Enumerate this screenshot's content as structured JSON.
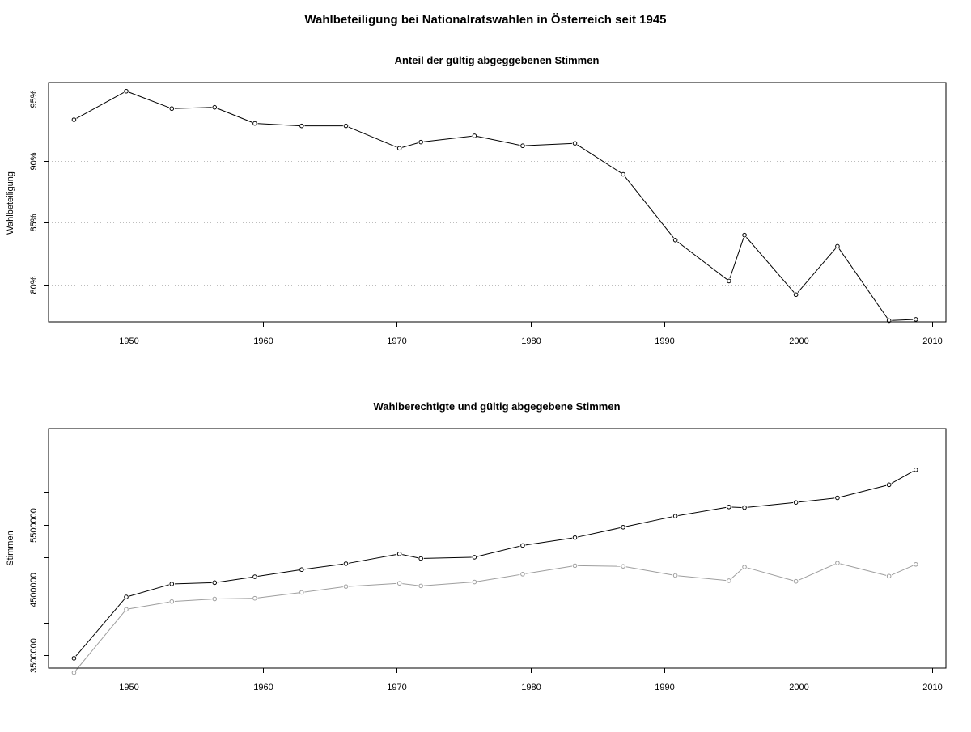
{
  "figure": {
    "title": "Wahlbeteiligung bei Nationalratswahlen in Österreich seit 1945"
  },
  "chart_data": [
    {
      "type": "line",
      "title": "Anteil der gültig abgeggebenen Stimmen",
      "xlabel": "",
      "ylabel": "Wahlbeteiligung",
      "xlim": [
        1944,
        2011
      ],
      "ylim": [
        77,
        96.3
      ],
      "xticks": [
        1950,
        1960,
        1970,
        1980,
        1990,
        2000,
        2010
      ],
      "xtick_labels": [
        "1950",
        "1960",
        "1970",
        "1980",
        "1990",
        "2000",
        "2010"
      ],
      "yticks": [
        80,
        85,
        90,
        95
      ],
      "ytick_labels": [
        "80%",
        "85%",
        "90%",
        "95%"
      ],
      "grid": "horizontal dotted",
      "series": [
        {
          "color": "#000000",
          "x": [
            1945.9,
            1949.8,
            1953.2,
            1956.4,
            1959.4,
            1962.9,
            1966.2,
            1970.2,
            1971.8,
            1975.8,
            1979.4,
            1983.3,
            1986.9,
            1990.8,
            1994.8,
            1995.96,
            1999.8,
            2002.9,
            2006.75,
            2008.75
          ],
          "y": [
            93.3,
            95.6,
            94.2,
            94.3,
            93.0,
            92.8,
            92.8,
            91.0,
            91.5,
            92.0,
            91.2,
            91.4,
            88.9,
            83.6,
            80.3,
            84.0,
            79.2,
            83.1,
            77.1,
            77.2
          ]
        }
      ]
    },
    {
      "type": "line",
      "title": "Wahlberechtigte und gültig abgegebene Stimmen",
      "xlabel": "",
      "ylabel": "Stimmen",
      "xlim": [
        1944,
        2011
      ],
      "ylim": [
        3300000,
        6970000
      ],
      "xticks": [
        1950,
        1960,
        1970,
        1980,
        1990,
        2000,
        2010
      ],
      "xtick_labels": [
        "1950",
        "1960",
        "1970",
        "1980",
        "1990",
        "2000",
        "2010"
      ],
      "yticks": [
        3500000,
        4000000,
        4500000,
        5000000,
        5500000,
        6000000
      ],
      "ytick_labels": [
        "3500000",
        "",
        "4500000",
        "",
        "5500000",
        ""
      ],
      "grid": "none",
      "series": [
        {
          "color": "#000000",
          "x": [
            1945.9,
            1949.8,
            1953.2,
            1956.4,
            1959.4,
            1962.9,
            1966.2,
            1970.2,
            1971.8,
            1975.8,
            1979.4,
            1983.3,
            1986.9,
            1990.8,
            1994.8,
            1995.96,
            1999.8,
            2002.9,
            2006.75,
            2008.75
          ],
          "y": [
            3450000,
            4390000,
            4590000,
            4610000,
            4700000,
            4810000,
            4900000,
            5050000,
            4980000,
            5000000,
            5180000,
            5300000,
            5460000,
            5630000,
            5770000,
            5760000,
            5840000,
            5910000,
            6110000,
            6340000
          ]
        },
        {
          "color": "#9e9e9e",
          "x": [
            1945.9,
            1949.8,
            1953.2,
            1956.4,
            1959.4,
            1962.9,
            1966.2,
            1970.2,
            1971.8,
            1975.8,
            1979.4,
            1983.3,
            1986.9,
            1990.8,
            1994.8,
            1995.96,
            1999.8,
            2002.9,
            2006.75,
            2008.75
          ],
          "y": [
            3230000,
            4200000,
            4320000,
            4360000,
            4370000,
            4460000,
            4550000,
            4600000,
            4560000,
            4620000,
            4740000,
            4870000,
            4860000,
            4720000,
            4640000,
            4850000,
            4630000,
            4910000,
            4710000,
            4890000
          ]
        }
      ]
    }
  ]
}
